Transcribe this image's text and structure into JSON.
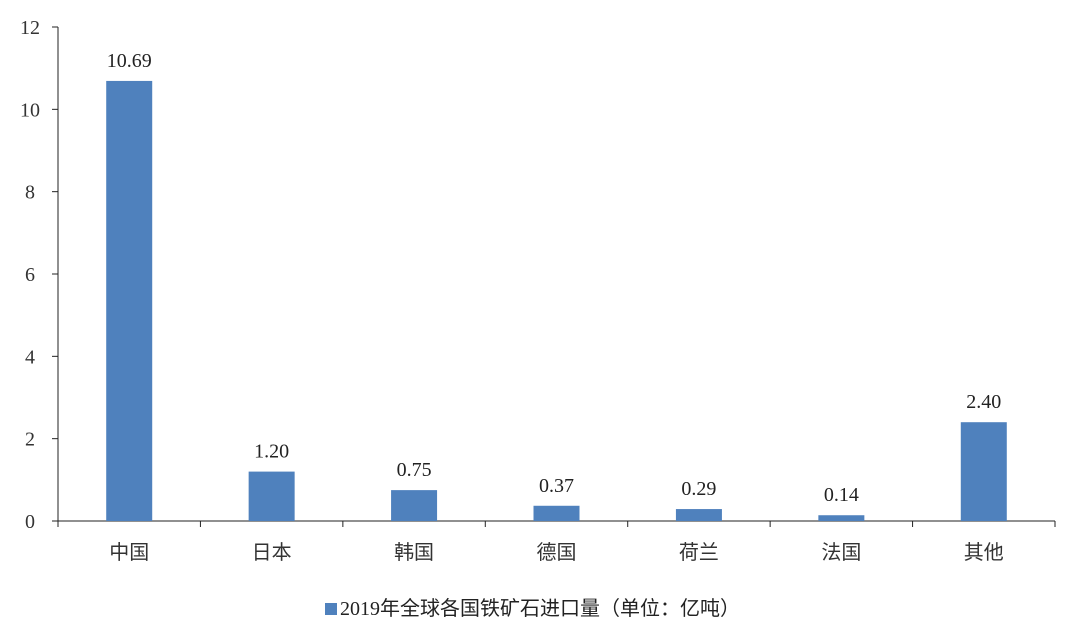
{
  "chart_data": {
    "type": "bar",
    "categories": [
      "中国",
      "日本",
      "韩国",
      "德国",
      "荷兰",
      "法国",
      "其他"
    ],
    "series": [
      {
        "name": "2019年全球各国铁矿石进口量（单位：亿吨）",
        "values": [
          10.69,
          1.2,
          0.75,
          0.37,
          0.29,
          0.14,
          2.4
        ],
        "labels": [
          "10.69",
          "1.20",
          "0.75",
          "0.37",
          "0.29",
          "0.14",
          "2.40"
        ],
        "color": "#4f81bd"
      }
    ],
    "ylim": [
      0,
      12
    ],
    "yticks": [
      "0",
      "2",
      "4",
      "6",
      "8",
      "10",
      "12"
    ],
    "grid": false,
    "legend_position": "bottom"
  }
}
